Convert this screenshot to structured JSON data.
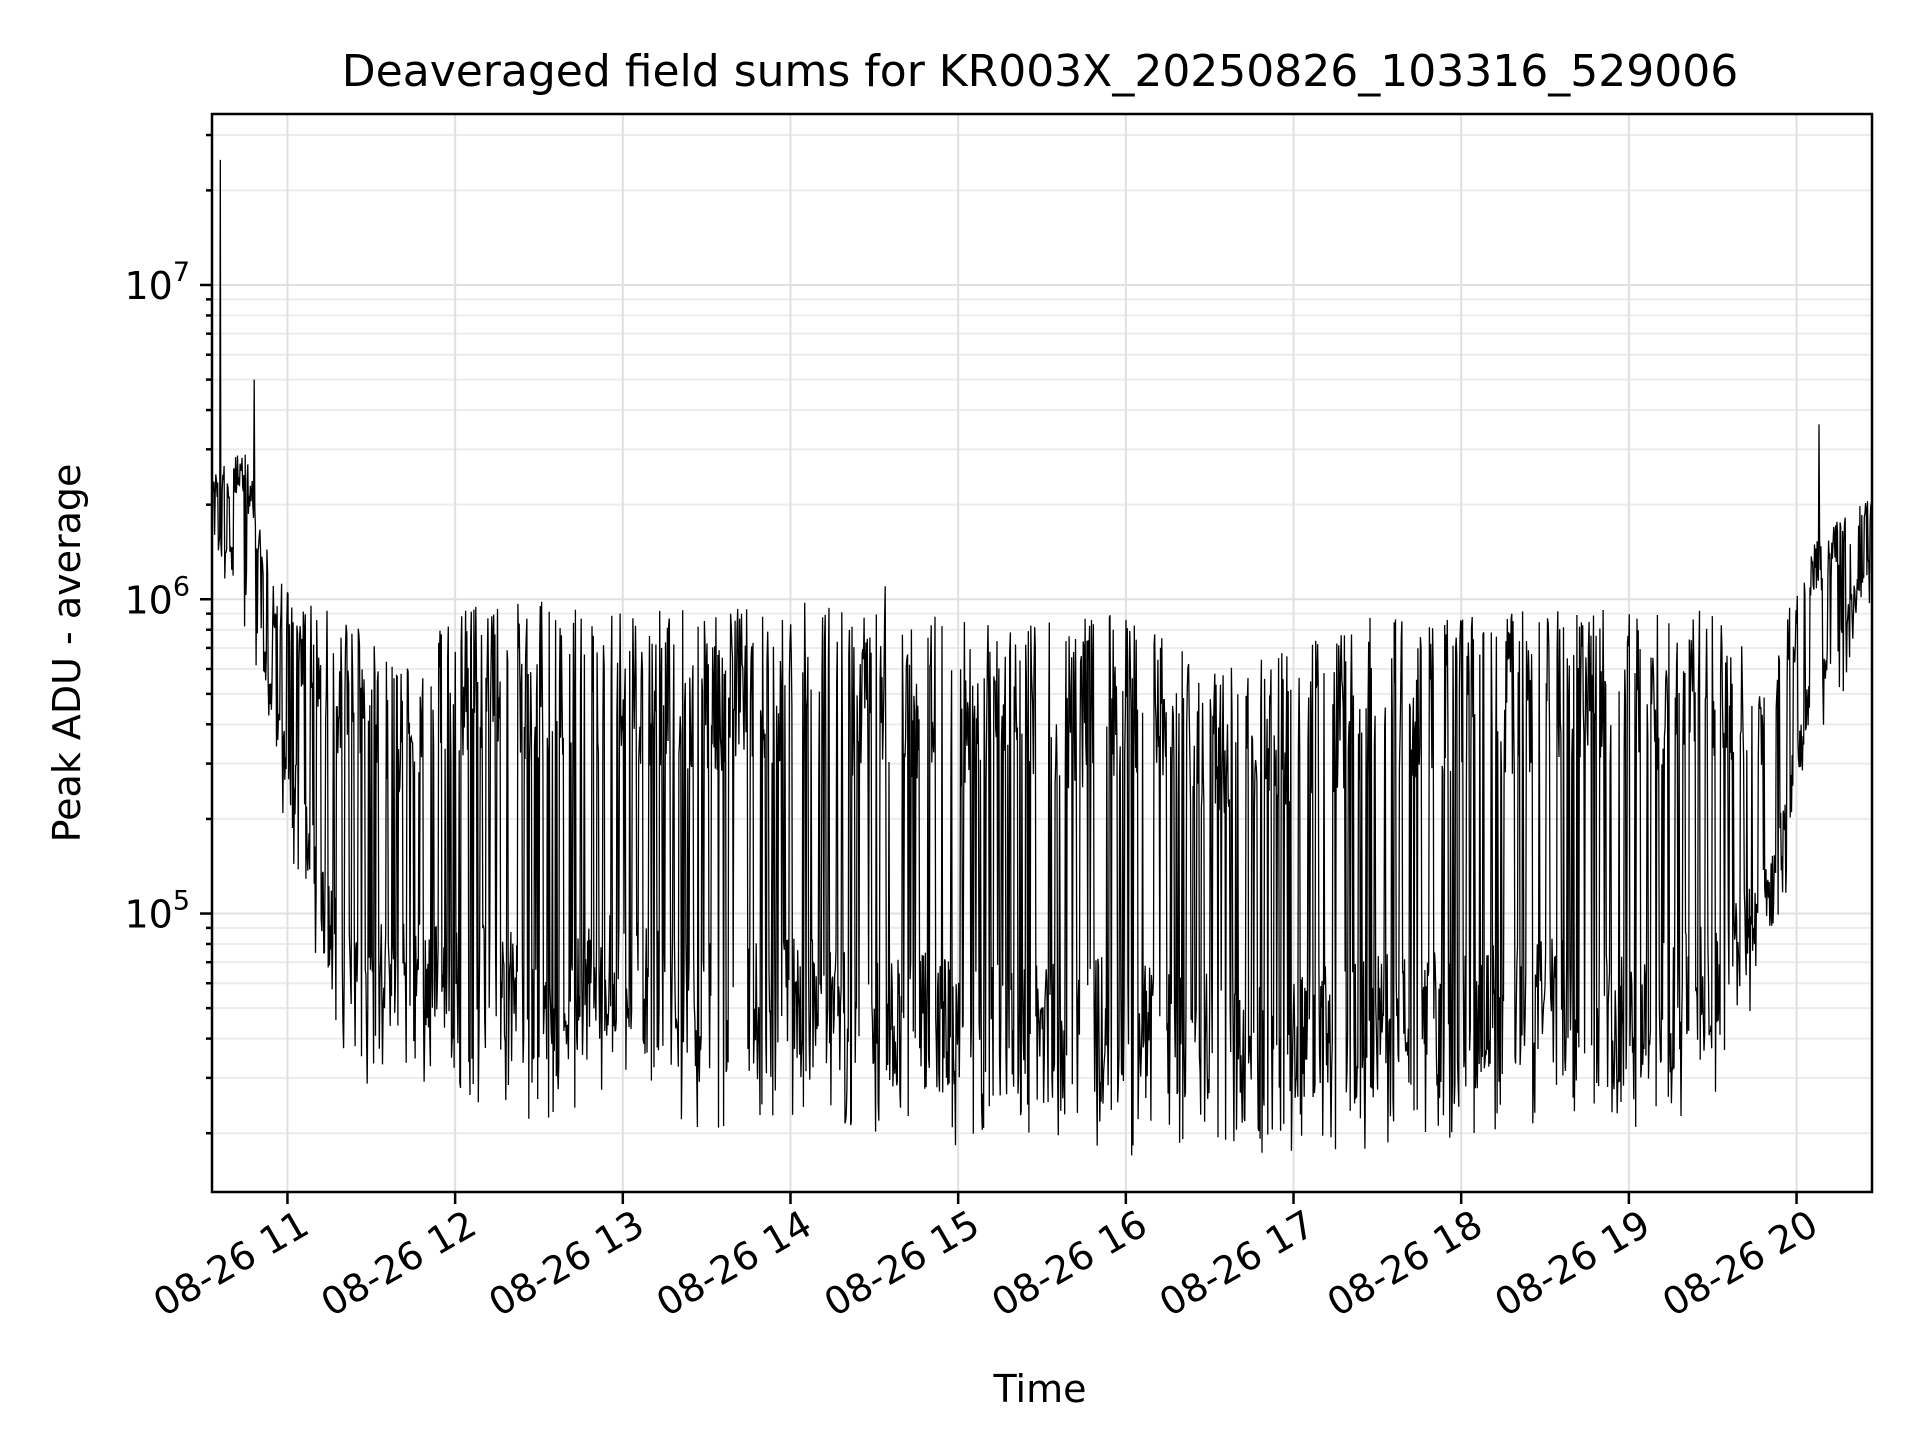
{
  "chart_data": {
    "type": "line",
    "title": "Deaveraged field sums for KR003X_20250826_103316_529006",
    "xlabel": "Time",
    "ylabel": "Peak ADU - average",
    "yscale": "log",
    "ylim": [
      13000,
      35000000
    ],
    "xlim": [
      "2025-08-26 10:33",
      "2025-08-26 20:27"
    ],
    "grid": true,
    "x_ticks": [
      {
        "value": "2025-08-26 11:00",
        "label": "08-26 11"
      },
      {
        "value": "2025-08-26 12:00",
        "label": "08-26 12"
      },
      {
        "value": "2025-08-26 13:00",
        "label": "08-26 13"
      },
      {
        "value": "2025-08-26 14:00",
        "label": "08-26 14"
      },
      {
        "value": "2025-08-26 15:00",
        "label": "08-26 15"
      },
      {
        "value": "2025-08-26 16:00",
        "label": "08-26 16"
      },
      {
        "value": "2025-08-26 17:00",
        "label": "08-26 17"
      },
      {
        "value": "2025-08-26 18:00",
        "label": "08-26 18"
      },
      {
        "value": "2025-08-26 19:00",
        "label": "08-26 19"
      },
      {
        "value": "2025-08-26 20:00",
        "label": "08-26 20"
      }
    ],
    "y_ticks": [
      {
        "value": 100000,
        "base": "10",
        "exp": "5"
      },
      {
        "value": 1000000,
        "base": "10",
        "exp": "6"
      },
      {
        "value": 10000000,
        "base": "10",
        "exp": "7"
      }
    ],
    "series": [
      {
        "color": "#000000",
        "envelope": [
          {
            "t": "2025-08-26 10:33",
            "low": 1500000,
            "high": 2500000
          },
          {
            "t": "2025-08-26 10:45",
            "low": 1000000,
            "high": 3000000
          },
          {
            "t": "2025-08-26 10:55",
            "low": 400000,
            "high": 1200000
          },
          {
            "t": "2025-08-26 11:05",
            "low": 150000,
            "high": 1000000
          },
          {
            "t": "2025-08-26 11:20",
            "low": 35000,
            "high": 900000
          },
          {
            "t": "2025-08-26 11:40",
            "low": 45000,
            "high": 600000
          },
          {
            "t": "2025-08-26 12:00",
            "low": 35000,
            "high": 950000
          },
          {
            "t": "2025-08-26 12:30",
            "low": 30000,
            "high": 1000000
          },
          {
            "t": "2025-08-26 13:00",
            "low": 40000,
            "high": 900000
          },
          {
            "t": "2025-08-26 13:30",
            "low": 28000,
            "high": 950000
          },
          {
            "t": "2025-08-26 14:00",
            "low": 30000,
            "high": 1000000
          },
          {
            "t": "2025-08-26 14:30",
            "low": 28000,
            "high": 900000
          },
          {
            "t": "2025-08-26 15:00",
            "low": 25000,
            "high": 880000
          },
          {
            "t": "2025-08-26 15:30",
            "low": 25000,
            "high": 850000
          },
          {
            "t": "2025-08-26 16:00",
            "low": 25000,
            "high": 900000
          },
          {
            "t": "2025-08-26 16:30",
            "low": 25000,
            "high": 600000
          },
          {
            "t": "2025-08-26 17:00",
            "low": 24000,
            "high": 700000
          },
          {
            "t": "2025-08-26 17:30",
            "low": 25000,
            "high": 950000
          },
          {
            "t": "2025-08-26 18:00",
            "low": 27000,
            "high": 880000
          },
          {
            "t": "2025-08-26 18:30",
            "low": 30000,
            "high": 950000
          },
          {
            "t": "2025-08-26 19:00",
            "low": 27000,
            "high": 950000
          },
          {
            "t": "2025-08-26 19:30",
            "low": 35000,
            "high": 950000
          },
          {
            "t": "2025-08-26 19:50",
            "low": 80000,
            "high": 600000
          },
          {
            "t": "2025-08-26 20:05",
            "low": 400000,
            "high": 1500000
          },
          {
            "t": "2025-08-26 20:27",
            "low": 1200000,
            "high": 2200000
          }
        ],
        "peaks": [
          {
            "t": "2025-08-26 10:36",
            "value": 25000000
          },
          {
            "t": "2025-08-26 10:48",
            "value": 5000000
          },
          {
            "t": "2025-08-26 14:34",
            "value": 1100000
          },
          {
            "t": "2025-08-26 16:02",
            "value": 17000
          },
          {
            "t": "2025-08-26 20:08",
            "value": 3600000
          }
        ]
      }
    ]
  }
}
